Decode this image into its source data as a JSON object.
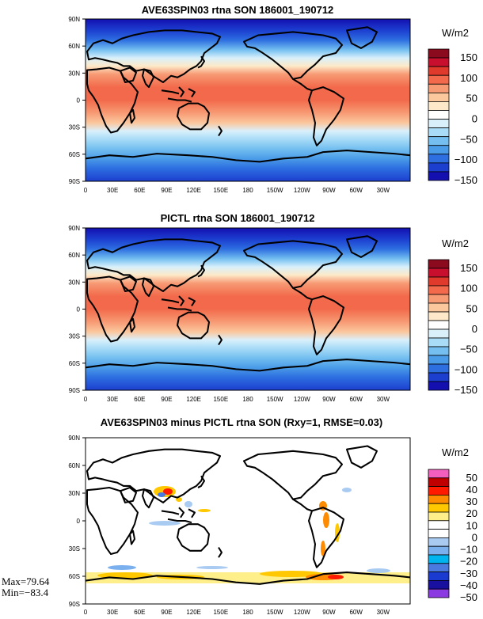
{
  "panels": [
    {
      "title": "AVE63SPIN03 rtna SON 186001_190712",
      "units": "W/m2",
      "colorbar": {
        "labels": [
          "150",
          "100",
          "50",
          "0",
          "−50",
          "−100",
          "−150"
        ],
        "colors": [
          "#8b0a1e",
          "#c8102e",
          "#e03a2c",
          "#f26a4b",
          "#f79b75",
          "#fbc79d",
          "#fde9c9",
          "#ffffff",
          "#d9f0fb",
          "#a9dcf7",
          "#74bff0",
          "#4a9ce8",
          "#2d6ee0",
          "#1c3fd0",
          "#1410b0"
        ]
      },
      "field": "base"
    },
    {
      "title": "PICTL rtna SON 186001_190712",
      "units": "W/m2",
      "colorbar": {
        "labels": [
          "150",
          "100",
          "50",
          "0",
          "−50",
          "−100",
          "−150"
        ],
        "colors": [
          "#8b0a1e",
          "#c8102e",
          "#e03a2c",
          "#f26a4b",
          "#f79b75",
          "#fbc79d",
          "#fde9c9",
          "#ffffff",
          "#d9f0fb",
          "#a9dcf7",
          "#74bff0",
          "#4a9ce8",
          "#2d6ee0",
          "#1c3fd0",
          "#1410b0"
        ]
      },
      "field": "base"
    },
    {
      "title": "AVE63SPIN03 minus PICTL rtna SON (Rxy=1, RMSE=0.03)",
      "units": "W/m2",
      "colorbar": {
        "labels": [
          "50",
          "40",
          "30",
          "20",
          "10",
          "0",
          "−10",
          "−20",
          "−30",
          "−40",
          "−50"
        ],
        "colors": [
          "#f25fbf",
          "#c00000",
          "#ff1a00",
          "#ff8c00",
          "#ffc800",
          "#ffef8a",
          "#ffffff",
          "#ffffff",
          "#a9cbf2",
          "#7ab0ee",
          "#00b4f0",
          "#4a7ae0",
          "#1a3ad0",
          "#1a10a0",
          "#8a3ae0"
        ]
      },
      "field": "diff",
      "max_label": "Max=79.64",
      "min_label": "Min=−83.4"
    }
  ],
  "lat_labels": [
    "90N",
    "60N",
    "30N",
    "0",
    "30S",
    "60S",
    "90S"
  ],
  "lon_labels": [
    "0",
    "30E",
    "60E",
    "90E",
    "120E",
    "150E",
    "180",
    "150W",
    "120W",
    "90W",
    "60W",
    "30W"
  ]
}
